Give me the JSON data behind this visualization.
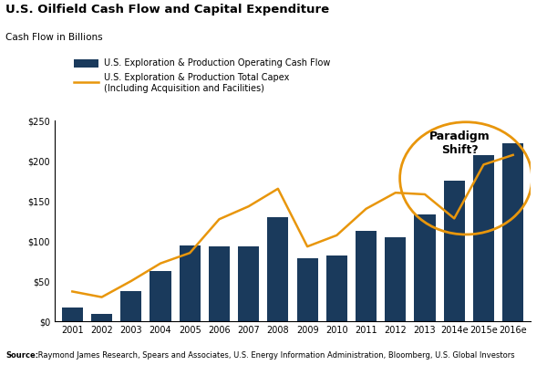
{
  "title": "U.S. Oilfield Cash Flow and Capital Expenditure",
  "subtitle": "Cash Flow in Billions",
  "source_bold": "Source:",
  "source_rest": " Raymond James Research, Spears and Associates, U.S. Energy Information Administration, Bloomberg, U.S. Global Investors",
  "years": [
    "2001",
    "2002",
    "2003",
    "2004",
    "2005",
    "2006",
    "2007",
    "2008",
    "2009",
    "2010",
    "2011",
    "2012",
    "2013",
    "2014e",
    "2015e",
    "2016e"
  ],
  "bar_values": [
    17,
    9,
    38,
    63,
    94,
    93,
    93,
    130,
    78,
    82,
    112,
    104,
    133,
    175,
    207,
    222
  ],
  "line_values": [
    37,
    30,
    50,
    72,
    85,
    127,
    143,
    165,
    93,
    107,
    140,
    160,
    158,
    128,
    195,
    207
  ],
  "bar_color": "#1a3a5c",
  "line_color": "#e8960c",
  "ylim": [
    0,
    250
  ],
  "yticks": [
    0,
    50,
    100,
    150,
    200,
    250
  ],
  "ytick_labels": [
    "$0",
    "$50",
    "$100",
    "$150",
    "$200",
    "$250"
  ],
  "bar_legend_label": "U.S. Exploration & Production Operating Cash Flow",
  "line_legend_label1": "U.S. Exploration & Production Total Capex",
  "line_legend_label2": "(Including Acquisition and Facilities)",
  "annotation_text": "Paradigm\nShift?",
  "background_color": "#ffffff",
  "title_fontsize": 9.5,
  "subtitle_fontsize": 7.5,
  "tick_fontsize": 7,
  "legend_fontsize": 7,
  "source_fontsize": 6,
  "annotation_fontsize": 9
}
